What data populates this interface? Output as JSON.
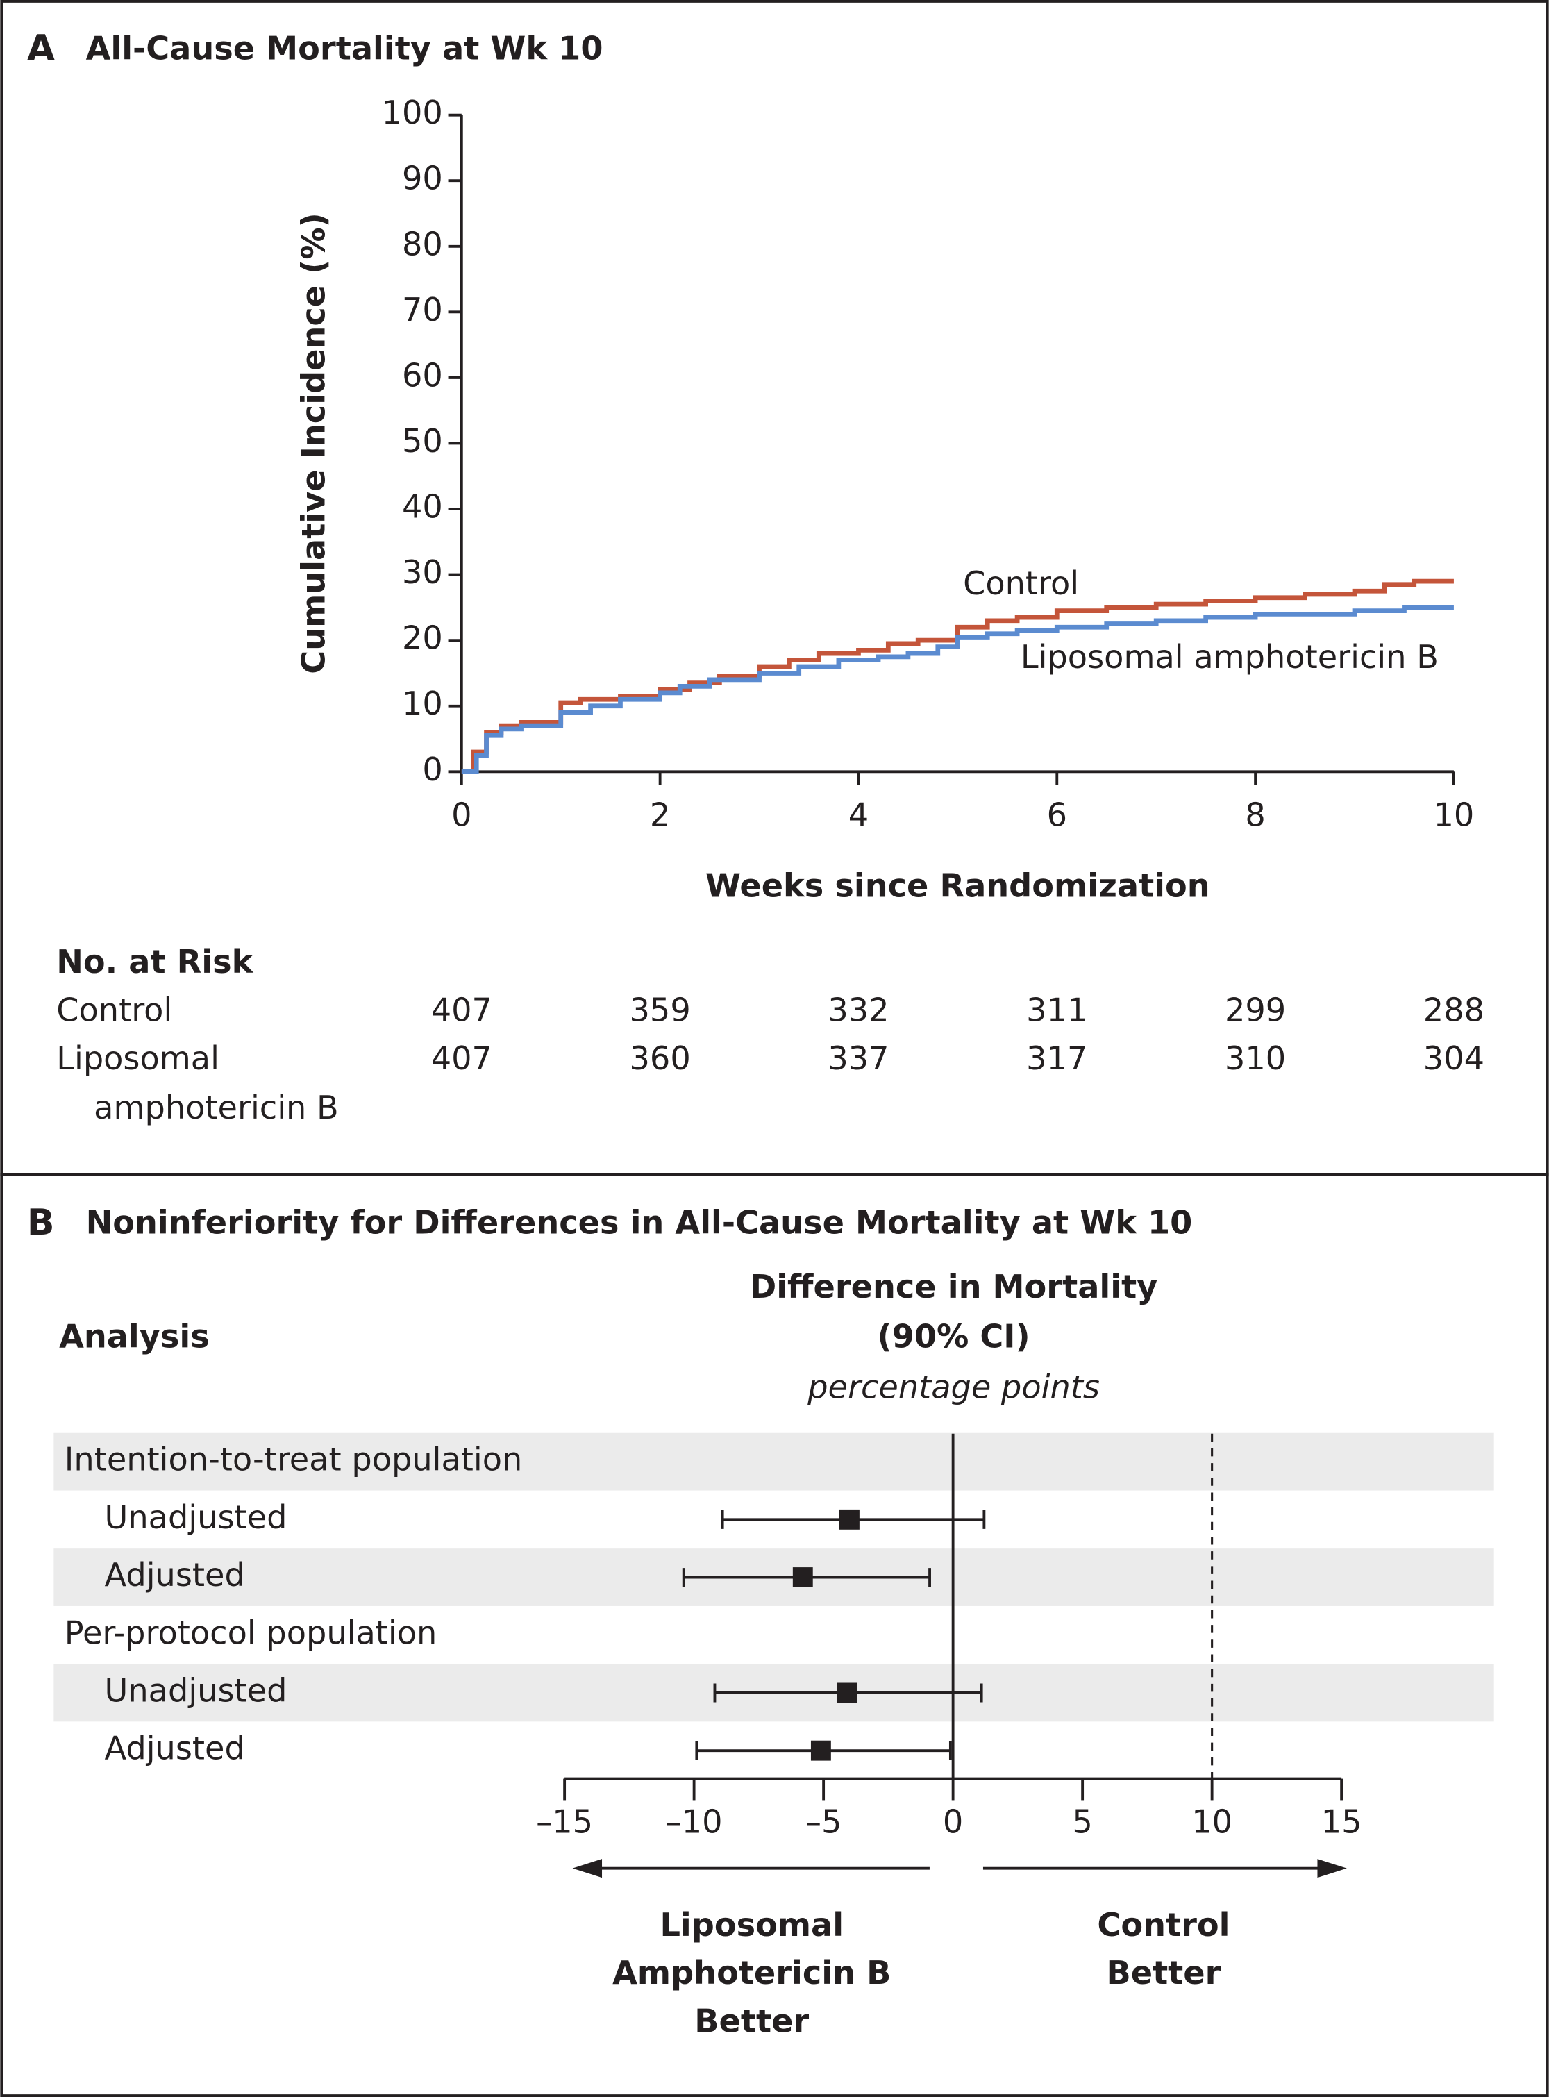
{
  "chart_data": [
    {
      "type": "step-line",
      "panel": "A",
      "title": "All-Cause Mortality at Wk 10",
      "xlabel": "Weeks since Randomization",
      "ylabel": "Cumulative Incidence (%)",
      "xlim": [
        0,
        10
      ],
      "xticks": [
        0,
        2,
        4,
        6,
        8,
        10
      ],
      "ylim": [
        0,
        100
      ],
      "yticks": [
        0,
        10,
        20,
        30,
        40,
        50,
        60,
        70,
        80,
        90,
        100
      ],
      "series": [
        {
          "name": "Control",
          "color": "#c4553a",
          "x": [
            0,
            0.12,
            0.25,
            0.4,
            0.6,
            1.0,
            1.2,
            1.6,
            2.0,
            2.3,
            2.6,
            3.0,
            3.3,
            3.6,
            4.0,
            4.3,
            4.6,
            5.0,
            5.3,
            5.6,
            6.0,
            6.5,
            7.0,
            7.5,
            8.0,
            8.5,
            9.0,
            9.3,
            9.6,
            10
          ],
          "values": [
            0,
            3,
            6,
            7,
            7.5,
            10.5,
            11,
            11.5,
            12.5,
            13.5,
            14.5,
            16,
            17,
            18,
            18.5,
            19.5,
            20,
            22,
            23,
            23.5,
            24.5,
            25,
            25.5,
            26,
            26.5,
            27,
            27.5,
            28.5,
            29,
            29
          ]
        },
        {
          "name": "Liposomal amphotericin B",
          "color": "#5b8bd0",
          "x": [
            0,
            0.15,
            0.25,
            0.4,
            0.6,
            1.0,
            1.3,
            1.6,
            2.0,
            2.2,
            2.5,
            3.0,
            3.4,
            3.8,
            4.2,
            4.5,
            4.8,
            5.0,
            5.3,
            5.6,
            6.0,
            6.5,
            7.0,
            7.5,
            8.0,
            9.0,
            9.5,
            10
          ],
          "values": [
            0,
            2.5,
            5.5,
            6.5,
            7,
            9,
            10,
            11,
            12,
            13,
            14,
            15,
            16,
            17,
            17.5,
            18,
            19,
            20.5,
            21,
            21.5,
            22,
            22.5,
            23,
            23.5,
            24,
            24.5,
            25,
            25
          ]
        }
      ],
      "risk_table": {
        "title": "No. at Risk",
        "rows": [
          {
            "label": [
              "Control"
            ],
            "values": [
              407,
              359,
              332,
              311,
              299,
              288
            ]
          },
          {
            "label": [
              "Liposomal",
              "amphotericin B"
            ],
            "values": [
              407,
              360,
              337,
              317,
              310,
              304
            ]
          }
        ]
      }
    },
    {
      "type": "forest",
      "panel": "B",
      "title": "Noninferiority for Differences in All-Cause Mortality at Wk 10",
      "row_header": "Analysis",
      "value_header": [
        "Difference in Mortality",
        "(90% CI)"
      ],
      "unit": "percentage points",
      "categories": [
        "Intention-to-treat population",
        "Unadjusted",
        "Adjusted",
        "Per-protocol population",
        "Unadjusted",
        "Adjusted"
      ],
      "values": [
        null,
        -4.0,
        -5.8,
        null,
        -4.1,
        -5.1
      ],
      "lower": [
        null,
        -8.9,
        -10.4,
        null,
        -9.2,
        -9.9
      ],
      "upper": [
        null,
        1.2,
        -0.9,
        null,
        1.1,
        -0.1
      ],
      "noninferiority_margin": 10,
      "xlim": [
        -15,
        15
      ],
      "xticks": [
        {
          "value": -15,
          "label": "–15"
        },
        {
          "value": -10,
          "label": "–10"
        },
        {
          "value": -5,
          "label": "–5"
        },
        0,
        5,
        10,
        15
      ],
      "left_label": [
        "Liposomal",
        "Amphotericin B",
        "Better"
      ],
      "right_label": [
        "Control",
        "Better"
      ]
    }
  ]
}
